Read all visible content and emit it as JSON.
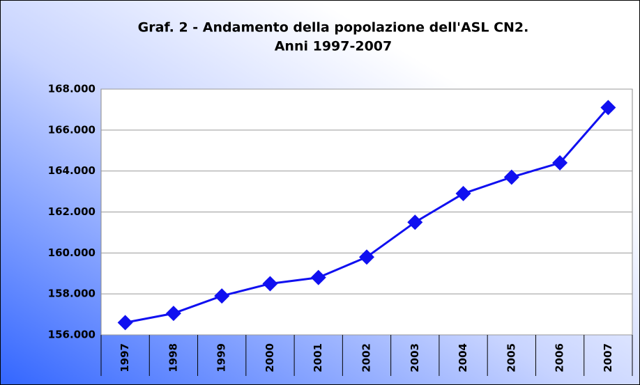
{
  "chart_data": {
    "type": "line",
    "title": [
      "Graf. 2 - Andamento della popolazione dell'ASL CN2.",
      "Anni 1997-2007"
    ],
    "categories": [
      "1997",
      "1998",
      "1999",
      "2000",
      "2001",
      "2002",
      "2003",
      "2004",
      "2005",
      "2006",
      "2007"
    ],
    "values": [
      156600,
      157050,
      157900,
      158500,
      158800,
      159800,
      161500,
      162900,
      163700,
      164400,
      167100
    ],
    "color": "#1010f0",
    "ylim": [
      156000,
      168000
    ],
    "yticks": [
      {
        "value": 156000,
        "label": "156.000"
      },
      {
        "value": 158000,
        "label": "158.000"
      },
      {
        "value": 160000,
        "label": "160.000"
      },
      {
        "value": 162000,
        "label": "162.000"
      },
      {
        "value": 164000,
        "label": "164.000"
      },
      {
        "value": 166000,
        "label": "166.000"
      },
      {
        "value": 168000,
        "label": "168.000"
      }
    ],
    "grid": true
  }
}
